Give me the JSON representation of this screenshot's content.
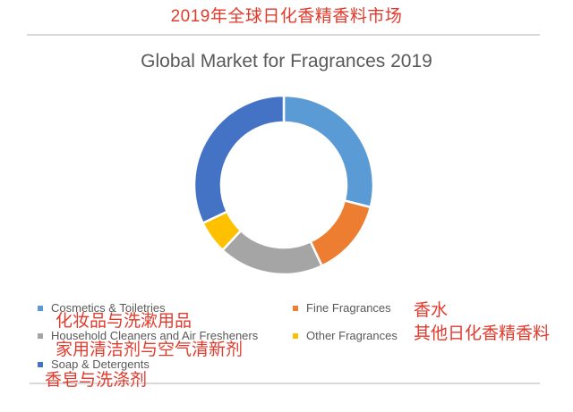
{
  "page": {
    "title_cn": "2019年全球日化香精香料市场"
  },
  "style": {
    "accent_red": "#e23a2c",
    "chart_text_gray": "#595959",
    "divider_gray": "#d9d9d9",
    "background": "#ffffff"
  },
  "chart_data": {
    "type": "pie",
    "variant": "donut",
    "title": "Global Market for Fragrances 2019",
    "categories": [
      "Cosmetics & Toiletries",
      "Fine Fragrances",
      "Household Cleaners and Air Fresheners",
      "Other Fragrances",
      "Soap & Detergents"
    ],
    "values": [
      29,
      14,
      19,
      6,
      32
    ],
    "unit": "percent-estimated",
    "colors": [
      "#5B9BD5",
      "#ED7D31",
      "#A5A5A5",
      "#FFC000",
      "#4472C4"
    ],
    "start_angle_deg": 0,
    "direction": "clockwise",
    "donut_hole_ratio": 0.7,
    "legend_position": "bottom",
    "data_labels": false
  },
  "legend": {
    "items": [
      {
        "label": "Cosmetics & Toiletries",
        "color": "#5B9BD5",
        "annotation_cn": "化妆品与洗漱用品"
      },
      {
        "label": "Fine Fragrances",
        "color": "#ED7D31",
        "annotation_cn": "香水"
      },
      {
        "label": "Household Cleaners and Air Fresheners",
        "color": "#A5A5A5",
        "annotation_cn": "家用清洁剂与空气清新剂"
      },
      {
        "label": "Other Fragrances",
        "color": "#FFC000",
        "annotation_cn": "其他日化香精香料"
      },
      {
        "label": "Soap & Detergents",
        "color": "#4472C4",
        "annotation_cn": "香皂与洗涤剂"
      }
    ]
  }
}
